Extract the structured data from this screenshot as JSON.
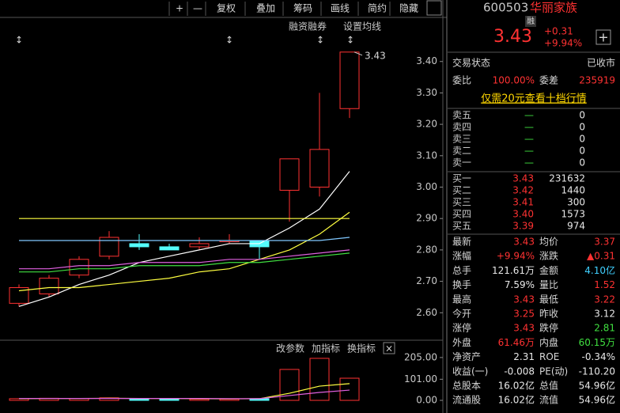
{
  "toolbar": [
    "+",
    "—",
    "复权",
    "叠加",
    "筹码",
    "画线",
    "简约",
    "隐藏"
  ],
  "chart_links": [
    "融资融券",
    "设置均线"
  ],
  "indicator_links": [
    "改参数",
    "加指标",
    "换指标"
  ],
  "chart_data": [
    {
      "type": "candlestick",
      "categories": [
        null,
        null,
        null,
        null,
        null,
        null,
        null,
        null,
        null,
        null,
        null,
        null
      ],
      "open": [
        2.63,
        2.66,
        2.72,
        2.78,
        2.82,
        2.81,
        2.81,
        2.83,
        2.83,
        2.99,
        3.0,
        3.25
      ],
      "high": [
        2.69,
        2.72,
        2.78,
        2.86,
        2.85,
        2.82,
        2.84,
        2.85,
        2.83,
        3.09,
        3.3,
        3.43
      ],
      "low": [
        2.62,
        2.65,
        2.71,
        2.77,
        2.8,
        2.8,
        2.8,
        2.82,
        2.77,
        2.89,
        2.97,
        3.22
      ],
      "close": [
        2.68,
        2.71,
        2.77,
        2.84,
        2.81,
        2.8,
        2.82,
        2.83,
        2.81,
        3.09,
        3.12,
        3.43
      ],
      "up_color": "#ff3232",
      "down_color": "#54fcfc",
      "ylim": [
        2.51,
        3.49
      ],
      "yticks": [
        {
          "value": 2.6,
          "label": "2.60"
        },
        {
          "value": 2.7,
          "label": "2.70"
        },
        {
          "value": 2.8,
          "label": "2.80"
        },
        {
          "value": 2.9,
          "label": "2.90"
        },
        {
          "value": 3.0,
          "label": "3.00"
        },
        {
          "value": 3.1,
          "label": "3.10"
        },
        {
          "value": 3.2,
          "label": "3.20"
        },
        {
          "value": 3.3,
          "label": "3.30"
        },
        {
          "value": 3.4,
          "label": "3.40"
        }
      ],
      "lines": [
        {
          "color": "#ffffff",
          "values": [
            2.62,
            2.65,
            2.69,
            2.72,
            2.76,
            2.78,
            2.8,
            2.82,
            2.82,
            2.87,
            2.93,
            3.05
          ]
        },
        {
          "color": "#ffff40",
          "values": [
            2.67,
            2.68,
            2.68,
            2.69,
            2.7,
            2.71,
            2.73,
            2.74,
            2.77,
            2.8,
            2.85,
            2.92
          ]
        },
        {
          "color": "#ffff40",
          "values": [
            2.9,
            2.9,
            2.9,
            2.9,
            2.9,
            2.9,
            2.9,
            2.9,
            2.9,
            2.9,
            2.9,
            2.9
          ]
        },
        {
          "color": "#80c8ff",
          "values": [
            2.83,
            2.83,
            2.83,
            2.83,
            2.83,
            2.83,
            2.83,
            2.83,
            2.83,
            2.83,
            2.83,
            2.84
          ]
        },
        {
          "color": "#e060e0",
          "values": [
            2.74,
            2.74,
            2.75,
            2.75,
            2.76,
            2.76,
            2.76,
            2.77,
            2.77,
            2.78,
            2.79,
            2.8
          ]
        },
        {
          "color": "#40e040",
          "values": [
            2.73,
            2.73,
            2.74,
            2.74,
            2.75,
            2.75,
            2.75,
            2.76,
            2.76,
            2.77,
            2.78,
            2.79
          ]
        }
      ]
    },
    {
      "type": "bar",
      "categories": [
        null,
        null,
        null,
        null,
        null,
        null,
        null,
        null,
        null,
        null,
        null,
        null
      ],
      "values": [
        8,
        10,
        9,
        12,
        9,
        7,
        6,
        6,
        8,
        148,
        201,
        106
      ],
      "ylim": [
        -34,
        231
      ],
      "yticks": [
        {
          "value": 0,
          "label": "0.00"
        },
        {
          "value": 101,
          "label": "101.00"
        },
        {
          "value": 205,
          "label": "205.00"
        }
      ],
      "lines": [
        {
          "color": "#ffff40",
          "values": [
            8,
            9,
            9,
            10,
            9,
            9,
            8,
            7,
            8,
            34,
            68,
            80
          ]
        },
        {
          "color": "#e060e0",
          "values": [
            9,
            9,
            9,
            9,
            9,
            9,
            9,
            8,
            8,
            23,
            38,
            49
          ]
        }
      ]
    }
  ],
  "quote": {
    "code": "600503",
    "name": "华丽家族",
    "badge": "融",
    "price": "3.43",
    "change": "+0.31",
    "change_pct": "+9.94%"
  },
  "status": [
    "交易状态",
    "已收市"
  ],
  "ratio": [
    "委比",
    "100.00%",
    "委差",
    "235919"
  ],
  "promo": "仅需20元查看十档行情",
  "asks": [
    [
      "卖五",
      "—",
      "0"
    ],
    [
      "卖四",
      "—",
      "0"
    ],
    [
      "卖三",
      "—",
      "0"
    ],
    [
      "卖二",
      "—",
      "0"
    ],
    [
      "卖一",
      "—",
      "0"
    ]
  ],
  "bids": [
    [
      "买一",
      "3.43",
      "231632"
    ],
    [
      "买二",
      "3.42",
      "1440"
    ],
    [
      "买三",
      "3.41",
      "300"
    ],
    [
      "买四",
      "3.40",
      "1573"
    ],
    [
      "买五",
      "3.39",
      "974"
    ]
  ],
  "stats": [
    {
      "cells": [
        "最新",
        "3.43",
        "均价",
        "3.37"
      ],
      "colors": [
        "#ff3232",
        "#ff3232"
      ]
    },
    {
      "cells": [
        "涨幅",
        "+9.94%",
        "涨跌",
        "▲0.31"
      ],
      "colors": [
        "#ff3232",
        "#ff3232"
      ]
    },
    {
      "cells": [
        "总手",
        "121.61万",
        "金额",
        "4.10亿"
      ],
      "colors": [
        "#e8e8e8",
        "#40d0ff"
      ]
    },
    {
      "cells": [
        "换手",
        "7.59%",
        "量比",
        "1.52"
      ],
      "colors": [
        "#e8e8e8",
        "#ff3232"
      ]
    },
    {
      "cells": [
        "最高",
        "3.43",
        "最低",
        "3.22"
      ],
      "colors": [
        "#ff3232",
        "#ff3232"
      ]
    },
    {
      "cells": [
        "今开",
        "3.25",
        "昨收",
        "3.12"
      ],
      "colors": [
        "#ff3232",
        "#e8e8e8"
      ]
    },
    {
      "cells": [
        "涨停",
        "3.43",
        "跌停",
        "2.81"
      ],
      "colors": [
        "#ff3232",
        "#40e040"
      ]
    },
    {
      "cells": [
        "外盘",
        "61.46万",
        "内盘",
        "60.15万"
      ],
      "colors": [
        "#ff3232",
        "#40e040"
      ]
    },
    {
      "cells": [
        "净资产",
        "2.31",
        "ROE",
        "-0.34%"
      ],
      "colors": [
        "#e8e8e8",
        "#e8e8e8"
      ]
    },
    {
      "cells": [
        "收益(一)",
        "-0.008",
        "PE(动)",
        "-110.20"
      ],
      "colors": [
        "#e8e8e8",
        "#e8e8e8"
      ]
    },
    {
      "cells": [
        "总股本",
        "16.02亿",
        "总值",
        "54.96亿"
      ],
      "colors": [
        "#e8e8e8",
        "#e8e8e8"
      ]
    },
    {
      "cells": [
        "流通股",
        "16.02亿",
        "流值",
        "54.96亿"
      ],
      "colors": [
        "#e8e8e8",
        "#e8e8e8"
      ]
    }
  ]
}
